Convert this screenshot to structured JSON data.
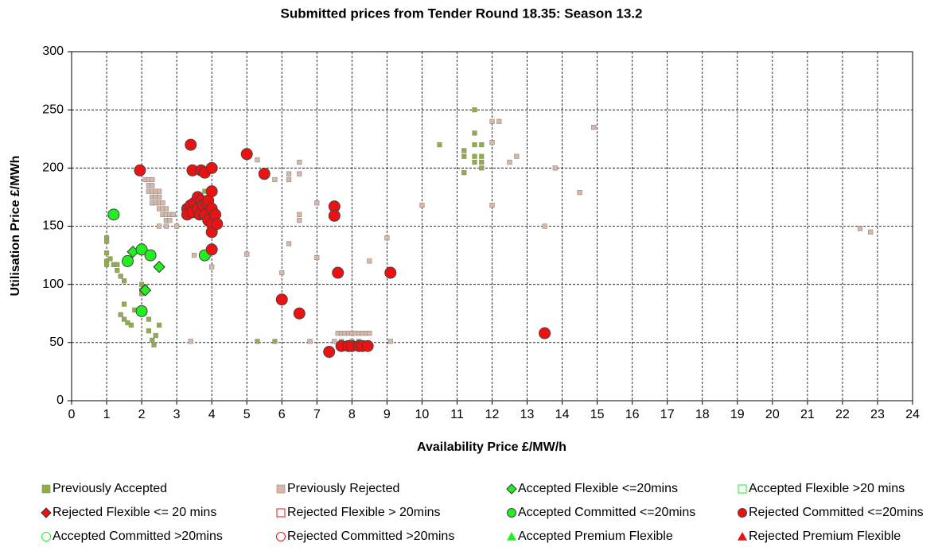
{
  "chart_data": {
    "type": "scatter",
    "title": "Submitted prices from Tender Round 18.35: Season 13.2",
    "x_label": "Availability Price £/MW/h",
    "y_label": "Utilisation Price £/MWh",
    "xlim": [
      0,
      24
    ],
    "ylim": [
      0,
      300
    ],
    "xticks": [
      0,
      1,
      2,
      3,
      4,
      5,
      6,
      7,
      8,
      9,
      10,
      11,
      12,
      13,
      14,
      15,
      16,
      17,
      18,
      19,
      20,
      21,
      22,
      23,
      24
    ],
    "yticks": [
      0,
      50,
      100,
      150,
      200,
      250,
      300
    ],
    "grid": true,
    "legend": "bottom",
    "series": [
      {
        "name": "Previously Accepted",
        "color": "#8fb040",
        "marker": "square",
        "filled": true,
        "x": [
          1.0,
          1.0,
          1.0,
          1.0,
          1.0,
          1.1,
          1.2,
          1.3,
          1.3,
          1.4,
          1.5,
          1.4,
          1.5,
          1.5,
          1.6,
          1.7,
          1.8,
          2.0,
          2.0,
          2.1,
          2.2,
          2.2,
          2.3,
          2.35,
          2.4,
          2.5,
          2.0,
          3.8,
          3.3,
          5.3,
          5.8,
          10.5,
          11.2,
          11.2,
          11.2,
          11.5,
          11.5,
          11.5,
          11.5,
          11.5,
          11.7,
          11.7,
          11.7,
          11.7,
          8.2
        ],
        "values": [
          140,
          137,
          127,
          120,
          117,
          122,
          117,
          117,
          112,
          107,
          103,
          74,
          83,
          70,
          67,
          65,
          78,
          100,
          92,
          98,
          60,
          70,
          52,
          48,
          56,
          65,
          95,
          180,
          162,
          51,
          51,
          220,
          215,
          210,
          196,
          250,
          230,
          220,
          210,
          205,
          220,
          210,
          205,
          200,
          51
        ]
      },
      {
        "name": "Previously Rejected",
        "color": "#d9b8a8",
        "marker": "square",
        "filled": true,
        "x": [
          2.1,
          2.2,
          2.3,
          2.2,
          2.3,
          2.2,
          2.3,
          2.4,
          2.5,
          2.3,
          2.4,
          2.5,
          2.3,
          2.4,
          2.5,
          2.6,
          2.5,
          2.6,
          2.7,
          2.6,
          2.7,
          2.8,
          2.9,
          2.7,
          2.8,
          2.5,
          2.7,
          3.0,
          3.5,
          4.0,
          3.4,
          5.0,
          5.3,
          5.8,
          6.0,
          6.2,
          6.2,
          6.2,
          6.5,
          6.5,
          6.5,
          6.5,
          6.8,
          7.0,
          7.0,
          7.5,
          7.6,
          7.7,
          7.8,
          7.9,
          8.0,
          8.1,
          8.2,
          8.3,
          8.4,
          8.5,
          7.7,
          8.0,
          8.5,
          9.0,
          9.1,
          10.0,
          12.0,
          12.2,
          12.0,
          12.0,
          12.5,
          12.7,
          13.5,
          13.8,
          14.5,
          14.9,
          22.5,
          22.8
        ],
        "values": [
          190,
          190,
          190,
          185,
          185,
          180,
          180,
          180,
          180,
          175,
          175,
          175,
          170,
          170,
          170,
          170,
          165,
          165,
          165,
          160,
          160,
          160,
          160,
          155,
          155,
          150,
          150,
          150,
          125,
          115,
          51,
          126,
          207,
          190,
          110,
          195,
          190,
          135,
          205,
          195,
          160,
          155,
          51,
          170,
          123,
          51,
          58,
          58,
          58,
          58,
          58,
          58,
          58,
          58,
          58,
          58,
          51,
          51,
          120,
          140,
          51,
          168,
          240,
          240,
          222,
          168,
          205,
          210,
          150,
          200,
          179,
          235,
          148,
          145
        ]
      },
      {
        "name": "Accepted Flexible <=20mins",
        "color": "#22ee22",
        "marker": "diamond",
        "filled": true,
        "x": [
          1.75,
          2.5,
          2.1
        ],
        "values": [
          128,
          115,
          95
        ]
      },
      {
        "name": "Accepted Flexible >20 mins",
        "color": "#22ee22",
        "marker": "square",
        "filled": false,
        "x": [],
        "values": []
      },
      {
        "name": "Rejected Flexible <= 20 mins",
        "color": "#ee1111",
        "marker": "diamond",
        "filled": true,
        "x": [],
        "values": []
      },
      {
        "name": "Rejected Flexible > 20mins",
        "color": "#ee1111",
        "marker": "square",
        "filled": false,
        "x": [],
        "values": []
      },
      {
        "name": "Accepted Committed <=20mins",
        "color": "#22ee22",
        "marker": "circle",
        "filled": true,
        "x": [
          1.2,
          2.0,
          1.6,
          2.25,
          2.0,
          3.8
        ],
        "values": [
          160,
          130,
          120,
          125,
          77,
          125
        ]
      },
      {
        "name": "Rejected Committed <=20mins",
        "color": "#ee1111",
        "marker": "circle",
        "filled": true,
        "x": [
          1.95,
          3.4,
          3.45,
          3.7,
          3.8,
          4.0,
          3.3,
          3.3,
          3.4,
          3.5,
          3.45,
          3.6,
          3.6,
          3.65,
          3.7,
          3.75,
          3.8,
          3.85,
          3.9,
          3.9,
          4.0,
          4.0,
          4.0,
          4.0,
          4.1,
          4.15,
          4.0,
          5.0,
          5.5,
          6.0,
          6.5,
          7.5,
          7.5,
          7.6,
          9.1,
          7.35,
          7.7,
          7.9,
          8.0,
          8.2,
          8.3,
          8.45,
          13.5
        ],
        "values": [
          198,
          220,
          198,
          198,
          196,
          200,
          165,
          160,
          168,
          170,
          162,
          175,
          165,
          160,
          172,
          168,
          160,
          170,
          172,
          155,
          180,
          165,
          152,
          145,
          160,
          152,
          130,
          212,
          195,
          87,
          75,
          167,
          159,
          110,
          110,
          42,
          47,
          47,
          47,
          47,
          47,
          47,
          58
        ]
      },
      {
        "name": "Accepted Committed >20mins",
        "color": "#22ee22",
        "marker": "circle",
        "filled": false,
        "x": [],
        "values": []
      },
      {
        "name": "Rejected Committed >20mins",
        "color": "#ee1111",
        "marker": "circle",
        "filled": false,
        "x": [],
        "values": []
      },
      {
        "name": "Accepted Premium Flexible",
        "color": "#22ee22",
        "marker": "triangle",
        "filled": true,
        "x": [],
        "values": []
      },
      {
        "name": "Rejected Premium Flexible",
        "color": "#ee1111",
        "marker": "triangle",
        "filled": true,
        "x": [],
        "values": []
      }
    ]
  }
}
